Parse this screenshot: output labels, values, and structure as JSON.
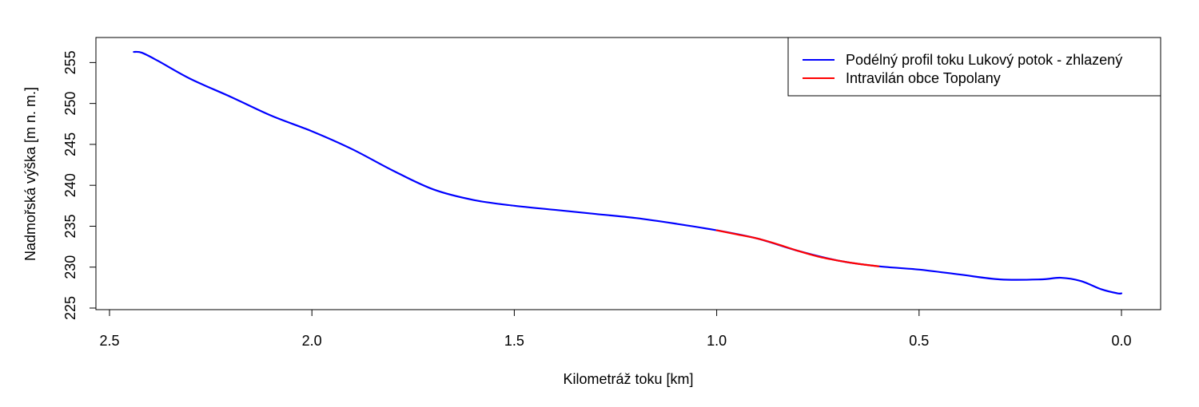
{
  "chart_data": {
    "type": "line",
    "xlabel": "Kilometráž toku [km]",
    "ylabel": "Nadmořská výška [m n. m.]",
    "xlim": [
      2.5,
      0.0
    ],
    "ylim": [
      225,
      256.5
    ],
    "x_reversed": true,
    "x_ticks": [
      2.5,
      2.0,
      1.5,
      1.0,
      0.5,
      0.0
    ],
    "x_tick_labels": [
      "2.5",
      "2.0",
      "1.5",
      "1.0",
      "0.5",
      "0.0"
    ],
    "y_ticks": [
      225,
      230,
      235,
      240,
      245,
      250,
      255
    ],
    "y_tick_labels": [
      "225",
      "230",
      "235",
      "240",
      "245",
      "250",
      "255"
    ],
    "grid": false,
    "legend_position": "top-right",
    "series": [
      {
        "name": "Podélný profil toku Lukový potok - zhlazený",
        "color": "#0000ff",
        "x": [
          2.44,
          2.42,
          2.38,
          2.3,
          2.2,
          2.1,
          2.0,
          1.9,
          1.8,
          1.7,
          1.6,
          1.5,
          1.4,
          1.3,
          1.2,
          1.1,
          1.0,
          0.9,
          0.8,
          0.7,
          0.6,
          0.5,
          0.4,
          0.3,
          0.2,
          0.15,
          0.1,
          0.05,
          0.01,
          0.0
        ],
        "y": [
          256.3,
          256.2,
          255.2,
          253.0,
          250.8,
          248.5,
          246.6,
          244.4,
          241.8,
          239.5,
          238.2,
          237.5,
          237.0,
          236.5,
          236.0,
          235.3,
          234.5,
          233.5,
          232.0,
          230.8,
          230.1,
          229.7,
          229.1,
          228.5,
          228.5,
          228.7,
          228.3,
          227.3,
          226.8,
          226.8
        ]
      },
      {
        "name": "Intravilán obce Topolany",
        "color": "#ff0000",
        "x": [
          1.0,
          0.95,
          0.9,
          0.85,
          0.8,
          0.75,
          0.7,
          0.65,
          0.6
        ],
        "y": [
          234.5,
          234.0,
          233.5,
          232.8,
          232.0,
          231.3,
          230.8,
          230.4,
          230.1
        ]
      }
    ]
  }
}
